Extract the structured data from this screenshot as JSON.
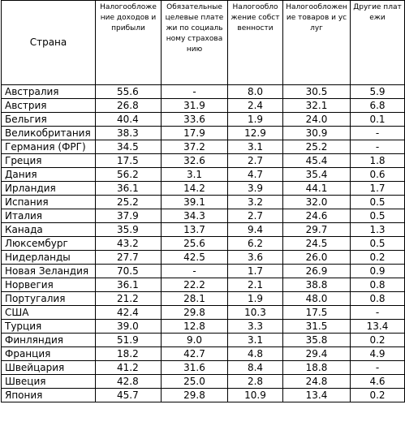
{
  "headers": {
    "country": "Страна",
    "income_profit": "Налогообложение доходов и прибыли",
    "social_insurance": "Обязательные целевые платежи по социальному страхованию",
    "property": "Налогообложение собственности",
    "goods_services": "Налогообложение товаров и услуг",
    "other": "Другие платежи"
  },
  "rows": [
    {
      "country": "Австралия",
      "income_profit": "55.6",
      "social_insurance": "-",
      "property": "8.0",
      "goods_services": "30.5",
      "other": "5.9"
    },
    {
      "country": "Австрия",
      "income_profit": "26.8",
      "social_insurance": "31.9",
      "property": "2.4",
      "goods_services": "32.1",
      "other": "6.8"
    },
    {
      "country": "Бельгия",
      "income_profit": "40.4",
      "social_insurance": "33.6",
      "property": "1.9",
      "goods_services": "24.0",
      "other": "0.1"
    },
    {
      "country": "Великобритания",
      "income_profit": "38.3",
      "social_insurance": "17.9",
      "property": "12.9",
      "goods_services": "30.9",
      "other": "-"
    },
    {
      "country": "Германия (ФРГ)",
      "income_profit": "34.5",
      "social_insurance": "37.2",
      "property": "3.1",
      "goods_services": "25.2",
      "other": "-"
    },
    {
      "country": "Греция",
      "income_profit": "17.5",
      "social_insurance": "32.6",
      "property": "2.7",
      "goods_services": "45.4",
      "other": "1.8"
    },
    {
      "country": "Дания",
      "income_profit": "56.2",
      "social_insurance": "3.1",
      "property": "4.7",
      "goods_services": "35.4",
      "other": "0.6"
    },
    {
      "country": "Ирландия",
      "income_profit": "36.1",
      "social_insurance": "14.2",
      "property": "3.9",
      "goods_services": "44.1",
      "other": "1.7"
    },
    {
      "country": "Испания",
      "income_profit": "25.2",
      "social_insurance": "39.1",
      "property": "3.2",
      "goods_services": "32.0",
      "other": "0.5"
    },
    {
      "country": "Италия",
      "income_profit": "37.9",
      "social_insurance": "34.3",
      "property": "2.7",
      "goods_services": "24.6",
      "other": "0.5"
    },
    {
      "country": "Канада",
      "income_profit": "35.9",
      "social_insurance": "13.7",
      "property": "9.4",
      "goods_services": "29.7",
      "other": "1.3"
    },
    {
      "country": "Люксембург",
      "income_profit": "43.2",
      "social_insurance": "25.6",
      "property": "6.2",
      "goods_services": "24.5",
      "other": "0.5"
    },
    {
      "country": "Нидерланды",
      "income_profit": "27.7",
      "social_insurance": "42.5",
      "property": "3.6",
      "goods_services": "26.0",
      "other": "0.2"
    },
    {
      "country": "Новая Зеландия",
      "income_profit": "70.5",
      "social_insurance": "-",
      "property": "1.7",
      "goods_services": "26.9",
      "other": "0.9"
    },
    {
      "country": "Норвегия",
      "income_profit": "36.1",
      "social_insurance": "22.2",
      "property": "2.1",
      "goods_services": "38.8",
      "other": "0.8"
    },
    {
      "country": "Португалия",
      "income_profit": "21.2",
      "social_insurance": "28.1",
      "property": "1.9",
      "goods_services": "48.0",
      "other": "0.8"
    },
    {
      "country": "США",
      "income_profit": "42.4",
      "social_insurance": "29.8",
      "property": "10.3",
      "goods_services": "17.5",
      "other": "-"
    },
    {
      "country": "Турция",
      "income_profit": "39.0",
      "social_insurance": "12.8",
      "property": "3.3",
      "goods_services": "31.5",
      "other": "13.4"
    },
    {
      "country": "Финляндия",
      "income_profit": "51.9",
      "social_insurance": "9.0",
      "property": "3.1",
      "goods_services": "35.8",
      "other": "0.2"
    },
    {
      "country": "Франция",
      "income_profit": "18.2",
      "social_insurance": "42.7",
      "property": "4.8",
      "goods_services": "29.4",
      "other": "4.9"
    },
    {
      "country": "Швейцария",
      "income_profit": "41.2",
      "social_insurance": "31.6",
      "property": "8.4",
      "goods_services": "18.8",
      "other": "-"
    },
    {
      "country": "Швеция",
      "income_profit": "42.8",
      "social_insurance": "25.0",
      "property": "2.8",
      "goods_services": "24.8",
      "other": "4.6"
    },
    {
      "country": "Япония",
      "income_profit": "45.7",
      "social_insurance": "29.8",
      "property": "10.9",
      "goods_services": "13.4",
      "other": "0.2"
    }
  ]
}
